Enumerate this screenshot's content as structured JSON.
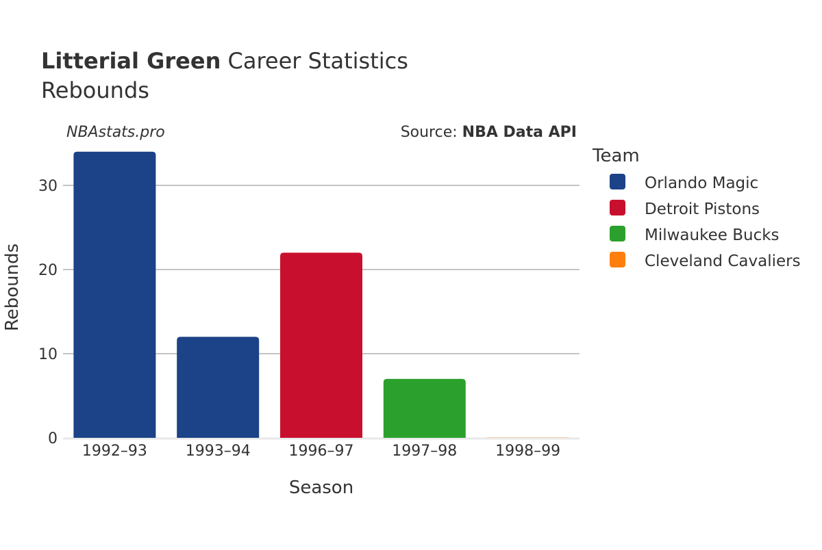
{
  "title_bold": "Litterial Green",
  "title_rest": " Career Statistics",
  "subtitle": "Rebounds",
  "watermark": "NBAstats.pro",
  "source_label": "Source: ",
  "source_value": "NBA Data API",
  "chart_data": {
    "type": "bar",
    "xlabel": "Season",
    "ylabel": "Rebounds",
    "ylim": [
      0,
      34
    ],
    "yticks": [
      0,
      10,
      20,
      30
    ],
    "grid": true,
    "legend_placement": "right",
    "legend_title": "Team",
    "categories": [
      "1992–93",
      "1993–94",
      "1996–97",
      "1997–98",
      "1998–99"
    ],
    "values": [
      34,
      12,
      22,
      7,
      0
    ],
    "teams": [
      "Orlando Magic",
      "Orlando Magic",
      "Detroit Pistons",
      "Milwaukee Bucks",
      "Cleveland Cavaliers"
    ],
    "legend": [
      {
        "name": "Orlando Magic",
        "color": "#1c4287"
      },
      {
        "name": "Detroit Pistons",
        "color": "#c8102e"
      },
      {
        "name": "Milwaukee Bucks",
        "color": "#2ca02c"
      },
      {
        "name": "Cleveland Cavaliers",
        "color": "#ff7f0e"
      }
    ]
  }
}
